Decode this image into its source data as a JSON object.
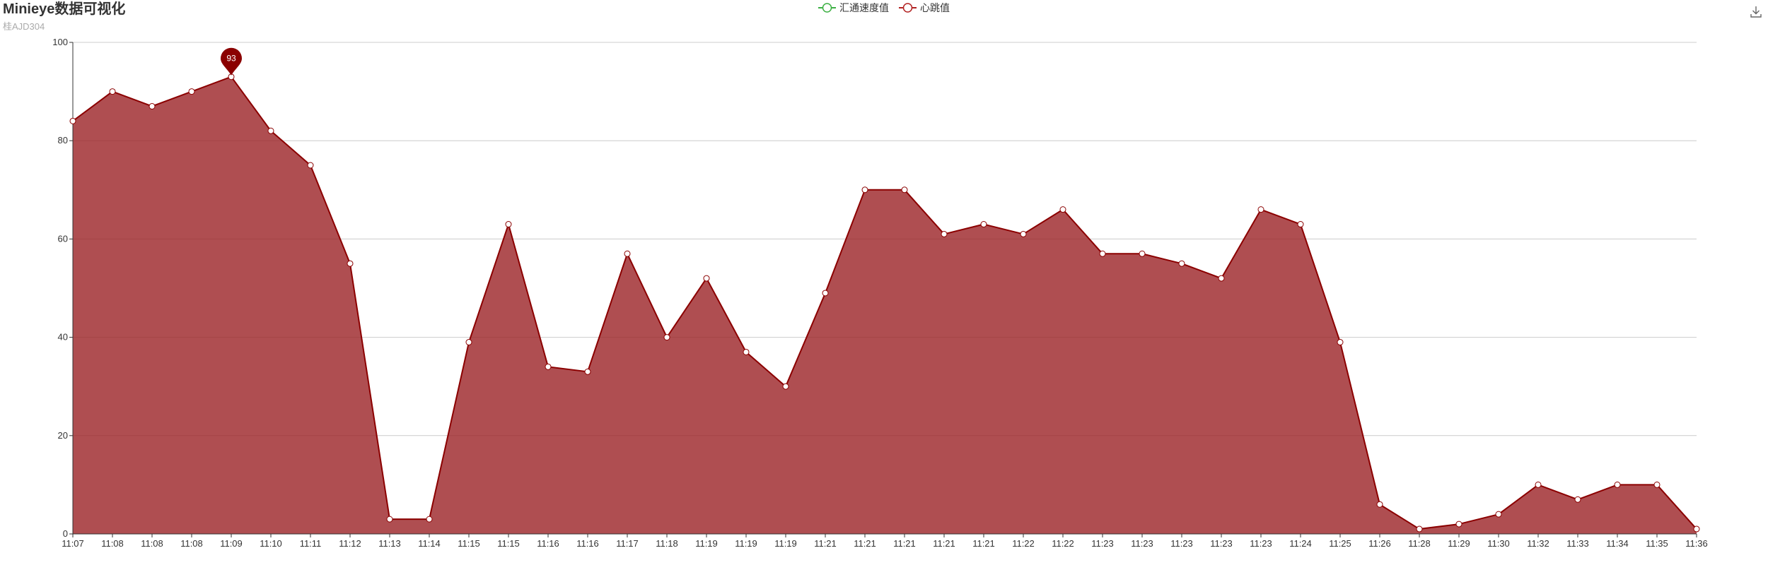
{
  "chart_data": {
    "type": "area",
    "title": "Minieye数据可视化",
    "subtitle": "桂AJD304",
    "xlabel": "",
    "ylabel": "",
    "ylim": [
      0,
      100
    ],
    "y_ticks": [
      0,
      20,
      40,
      60,
      80,
      100
    ],
    "grid": true,
    "legend_position": "top-center",
    "legend": [
      {
        "name": "汇通速度值",
        "color": "#3cb043"
      },
      {
        "name": "心跳值",
        "color": "#b22222"
      }
    ],
    "x": [
      "11:07",
      "11:08",
      "11:08",
      "11:08",
      "11:09",
      "11:10",
      "11:11",
      "11:12",
      "11:13",
      "11:14",
      "11:15",
      "11:15",
      "11:16",
      "11:16",
      "11:17",
      "11:18",
      "11:19",
      "11:19",
      "11:19",
      "11:21",
      "11:21",
      "11:21",
      "11:21",
      "11:21",
      "11:22",
      "11:22",
      "11:23",
      "11:23",
      "11:23",
      "11:23",
      "11:23",
      "11:24",
      "11:25",
      "11:26",
      "11:28",
      "11:29",
      "11:30",
      "11:32",
      "11:33",
      "11:34",
      "11:35",
      "11:36"
    ],
    "series": [
      {
        "name": "心跳值",
        "color": "#8b0000",
        "values": [
          84,
          90,
          87,
          90,
          93,
          82,
          75,
          55,
          3,
          3,
          39,
          63,
          34,
          33,
          57,
          40,
          52,
          37,
          30,
          49,
          70,
          70,
          61,
          63,
          61,
          66,
          57,
          57,
          55,
          52,
          66,
          63,
          39,
          6,
          1,
          2,
          4,
          10,
          7,
          10,
          10,
          1
        ],
        "max_marker": {
          "label": "93",
          "value": 93
        }
      }
    ],
    "colors": {
      "area_fill": "#9b2226",
      "area_opacity": 0.8,
      "line": "#8b0000",
      "pin": "#8b0000",
      "grid": "#cccccc",
      "axis": "#333333"
    },
    "toolbox": {
      "icon": "download-icon"
    }
  }
}
